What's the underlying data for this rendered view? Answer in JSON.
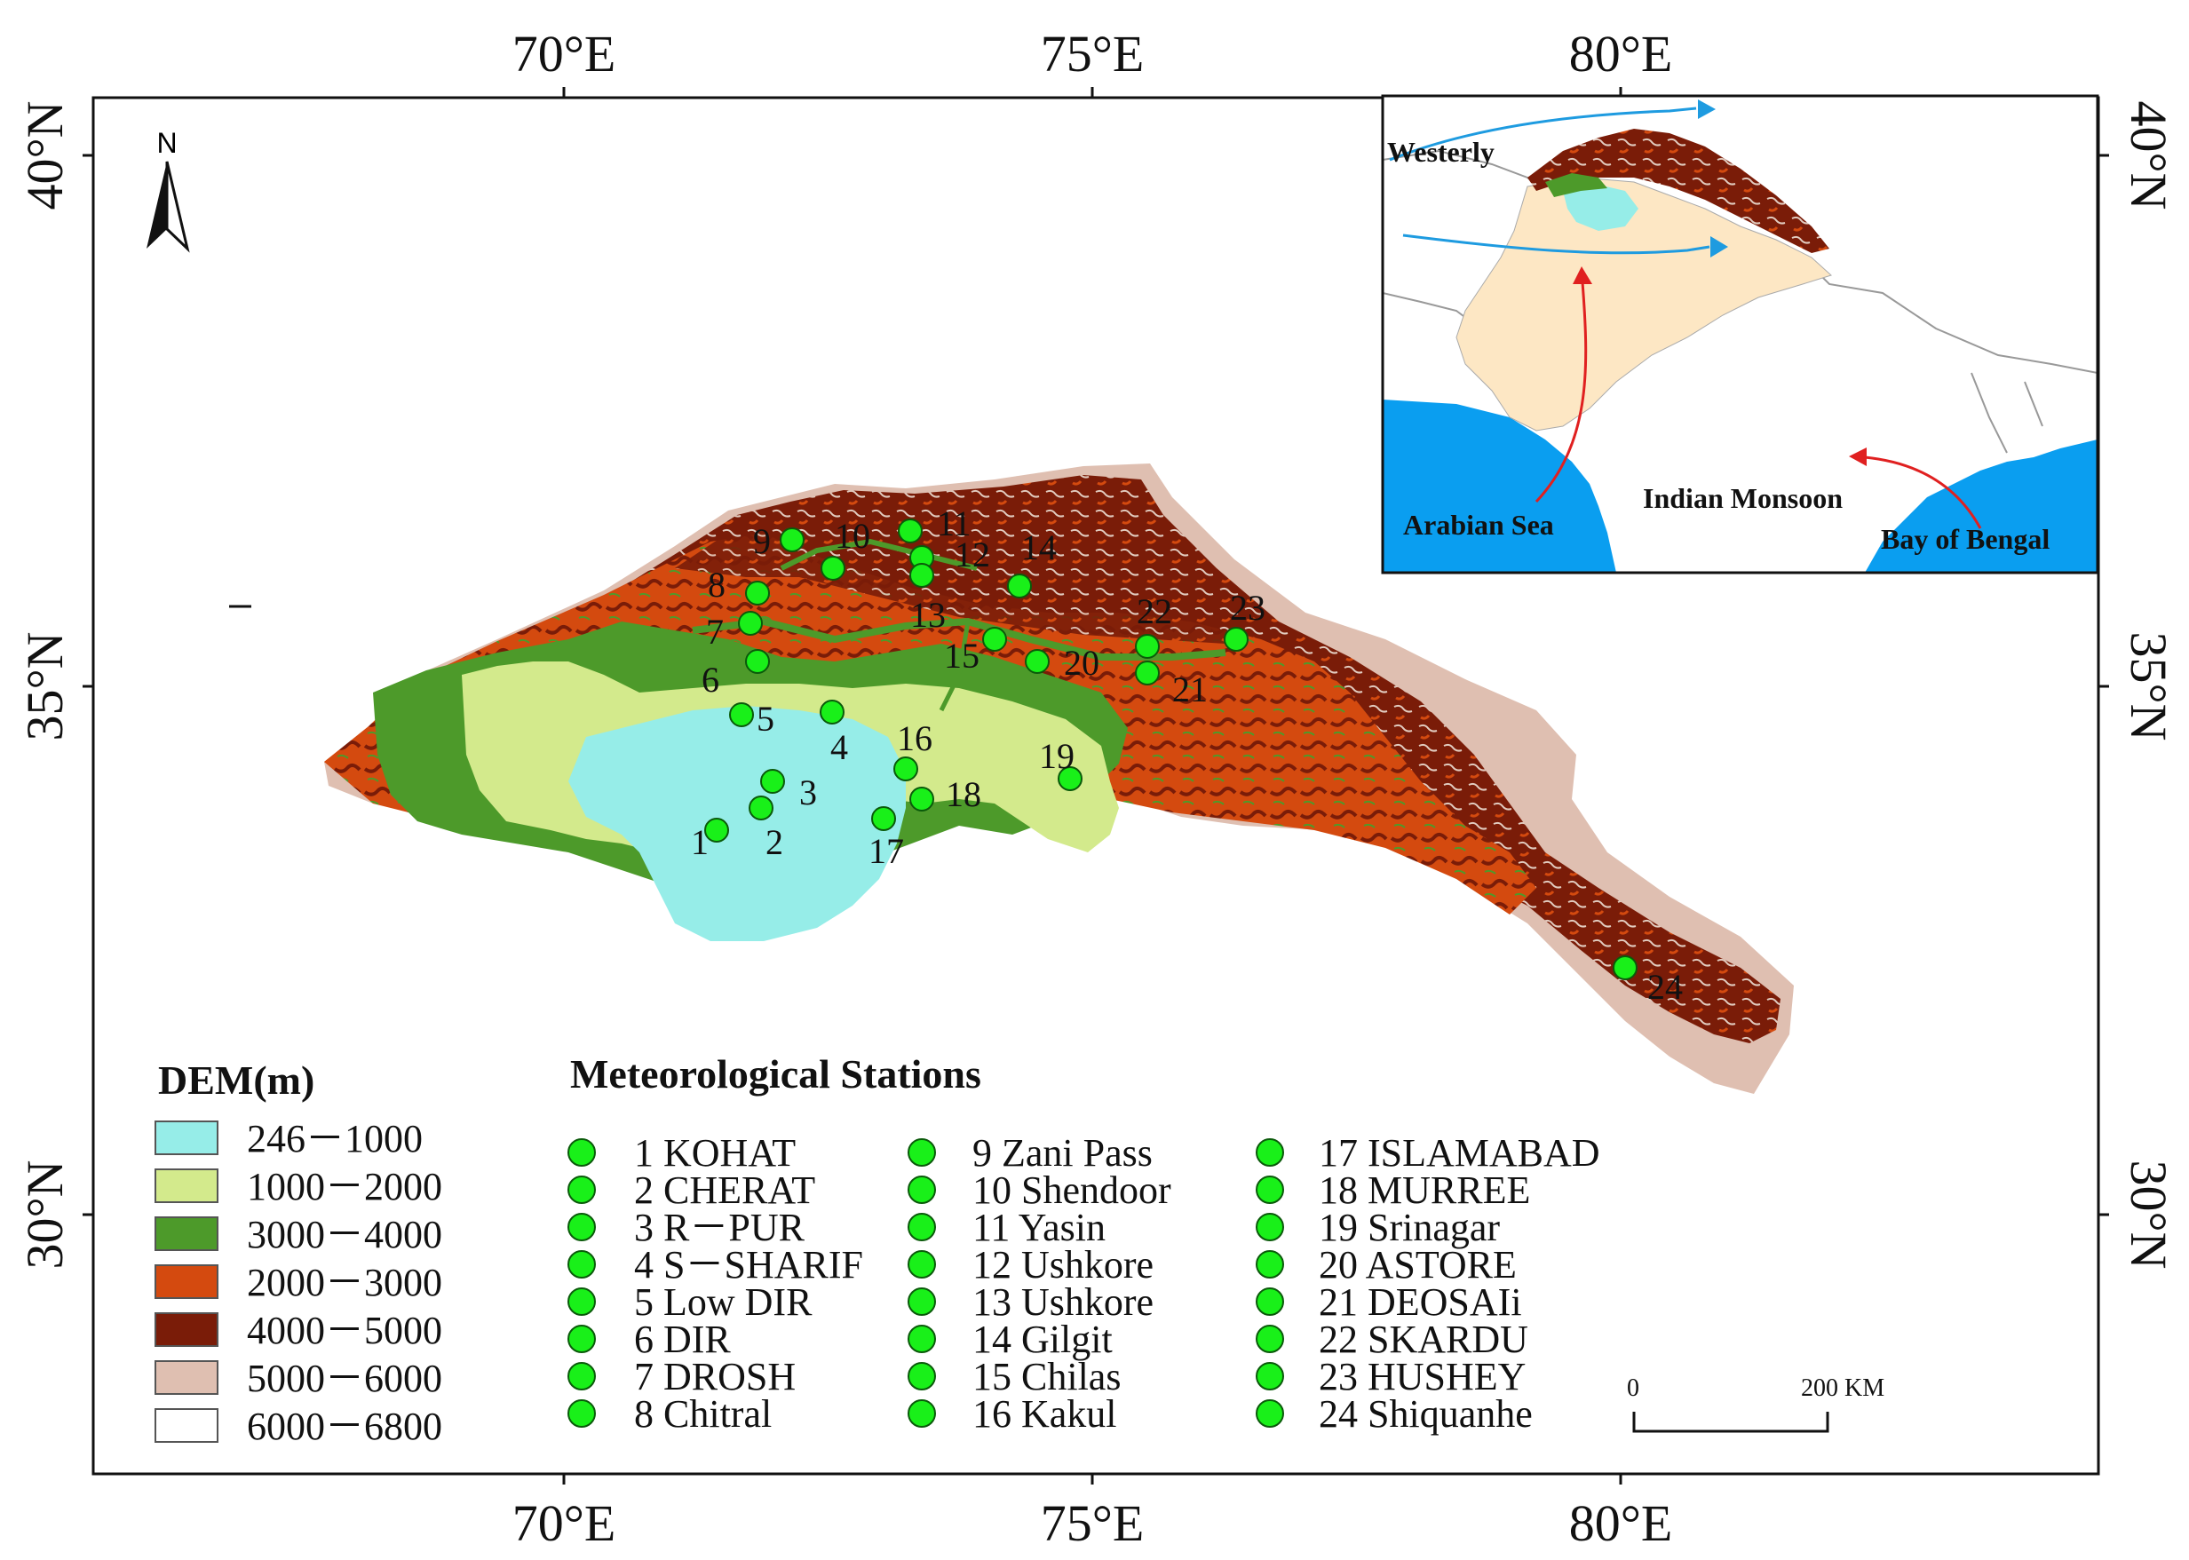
{
  "map": {
    "north_label": "N",
    "top_ticks": [
      "70°E",
      "75°E",
      "80°E"
    ],
    "bottom_ticks": [
      "70°E",
      "75°E",
      "80°E"
    ],
    "left_ticks": [
      "40°N",
      "35°N",
      "30°N"
    ],
    "right_ticks": [
      "40°N",
      "35°N",
      "30°N"
    ]
  },
  "dem_legend": {
    "title": "DEM(m)",
    "classes": [
      {
        "label": "246－1000",
        "color": "#96ede8"
      },
      {
        "label": "1000－2000",
        "color": "#d3ea8c"
      },
      {
        "label": "3000－4000",
        "color": "#4d9a2a"
      },
      {
        "label": "2000－3000",
        "color": "#d44a0f"
      },
      {
        "label": "4000－5000",
        "color": "#7a1c08"
      },
      {
        "label": "5000－6000",
        "color": "#dfbfb1"
      },
      {
        "label": "6000－6800",
        "color": "#ffffff"
      }
    ]
  },
  "stations_legend": {
    "title": "Meteorological Stations",
    "station_color": "#19f019",
    "columns": [
      [
        "1 KOHAT",
        "2 CHERAT",
        "3 R－PUR",
        "4 S－SHARIF",
        "5 Low DIR",
        "6 DIR",
        "7 DROSH",
        "8 Chitral"
      ],
      [
        "9 Zani Pass",
        "10 Shendoor",
        "11 Yasin",
        "12 Ushkore",
        "13 Ushkore",
        "14 Gilgit",
        "15 Chilas",
        "16 Kakul"
      ],
      [
        "17 ISLAMABAD",
        "18 MURREE",
        "19 Srinagar",
        "20 ASTORE",
        "21 DEOSAIi",
        "22 SKARDU",
        "23 HUSHEY",
        "24 Shiquanhe"
      ]
    ]
  },
  "station_numbers": [
    "1",
    "2",
    "3",
    "4",
    "5",
    "6",
    "7",
    "8",
    "9",
    "10",
    "11",
    "12",
    "13",
    "14",
    "15",
    "16",
    "17",
    "18",
    "19",
    "20",
    "21",
    "22",
    "23",
    "24"
  ],
  "inset": {
    "westerly_label": "Westerly",
    "arabian_sea_label": "Arabian Sea",
    "monsoon_label": "Indian Monsoon",
    "bengal_label": "Bay of Bengal",
    "westerly_color": "#1e9be0",
    "monsoon_color": "#e02020",
    "sea_color": "#0a9ef0",
    "land_color": "#fde7c4"
  },
  "scale_bar": {
    "start_label": "0",
    "end_label": "200 KM"
  }
}
